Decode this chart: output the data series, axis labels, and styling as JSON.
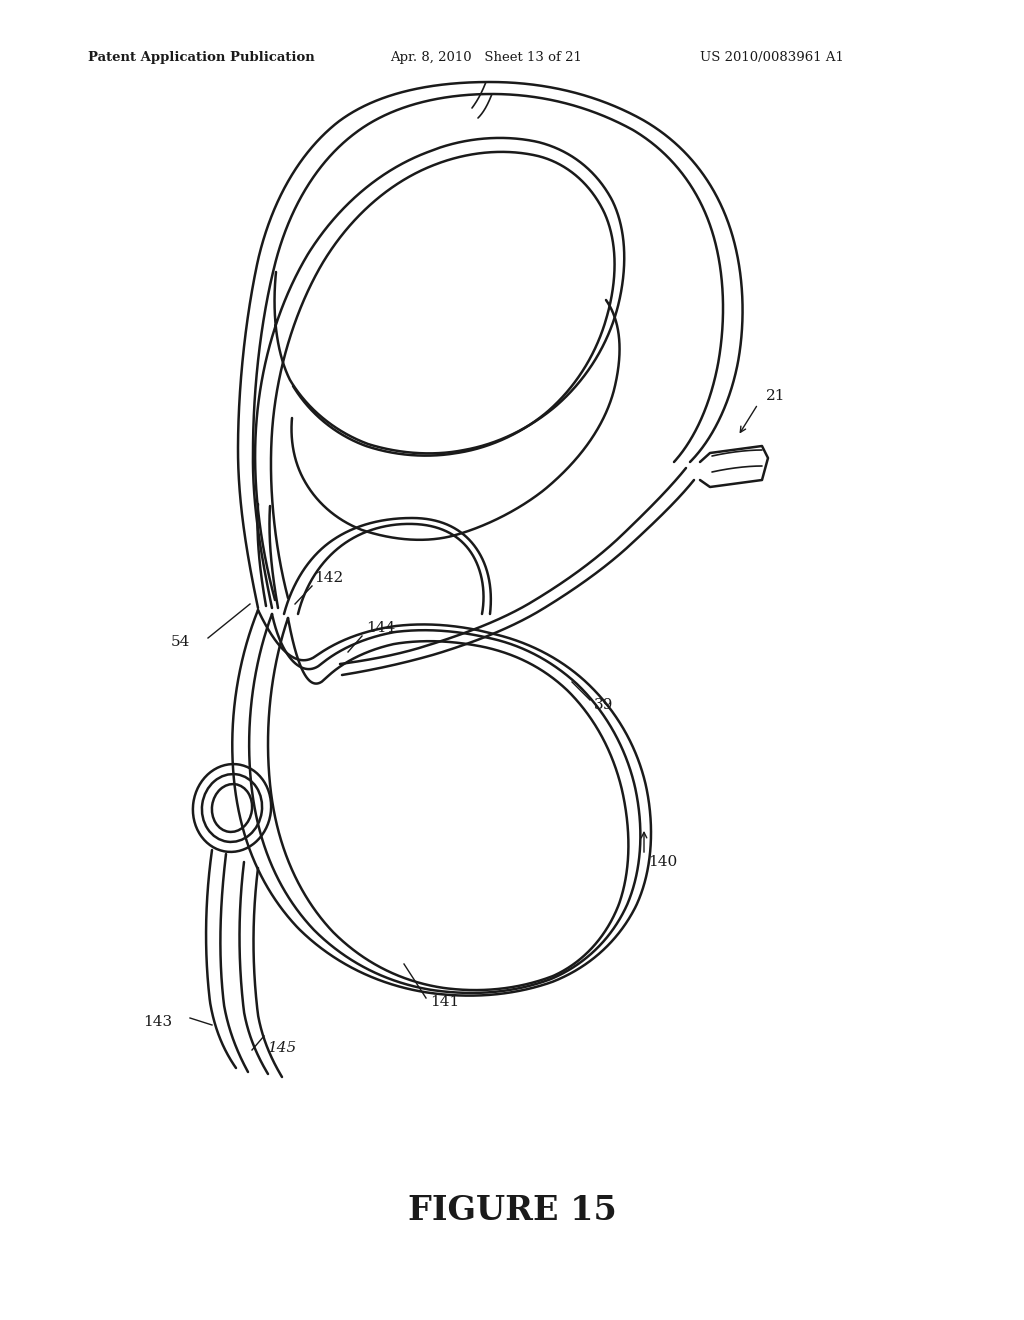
{
  "title": "FIGURE 15",
  "header_left": "Patent Application Publication",
  "header_mid": "Apr. 8, 2010   Sheet 13 of 21",
  "header_right": "US 2010/0083961 A1",
  "bg_color": "#ffffff",
  "line_color": "#1a1a1a",
  "lw_main": 1.8,
  "lw_thin": 1.2,
  "label_fontsize": 11
}
